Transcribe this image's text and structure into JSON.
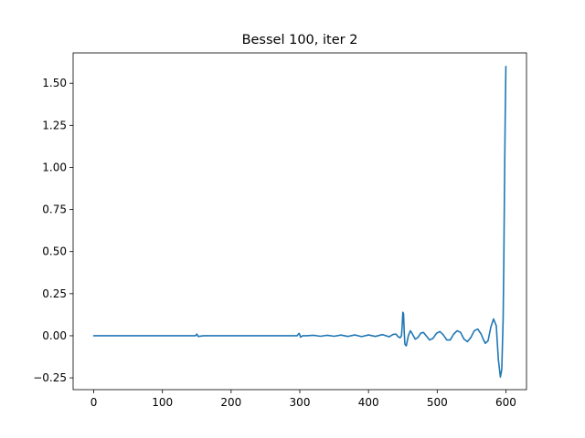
{
  "chart_data": {
    "type": "line",
    "title": "Bessel 100, iter 2",
    "xlabel": "",
    "ylabel": "",
    "xlim": [
      -30,
      630
    ],
    "ylim": [
      -0.32,
      1.68
    ],
    "x_ticks": [
      0,
      100,
      200,
      300,
      400,
      500,
      600
    ],
    "y_ticks": [
      -0.25,
      0.0,
      0.25,
      0.5,
      0.75,
      1.0,
      1.25,
      1.5
    ],
    "x_tick_labels": [
      "0",
      "100",
      "200",
      "300",
      "400",
      "500",
      "600"
    ],
    "y_tick_labels": [
      "−0.25",
      "0.00",
      "0.25",
      "0.50",
      "0.75",
      "1.00",
      "1.25",
      "1.50"
    ],
    "grid": false,
    "series": [
      {
        "color": "#1f77b4",
        "x": [
          0,
          148,
          149,
          150,
          151,
          152,
          160,
          296,
          298,
          299,
          300,
          301,
          302,
          304,
          310,
          320,
          330,
          340,
          350,
          360,
          370,
          380,
          390,
          400,
          410,
          420,
          430,
          436,
          440,
          443,
          446,
          448,
          449,
          450,
          451,
          452,
          453,
          455,
          458,
          461,
          464,
          468,
          472,
          476,
          480,
          484,
          489,
          494,
          499,
          504,
          509,
          514,
          519,
          524,
          529,
          534,
          539,
          544,
          549,
          554,
          559,
          564,
          567,
          570,
          574,
          578,
          582,
          586,
          589,
          592,
          594,
          596,
          597,
          598,
          599,
          600
        ],
        "y": [
          0.0,
          0.0,
          0.004,
          0.01,
          0.004,
          -0.004,
          0.0,
          0.0,
          0.01,
          0.014,
          0.006,
          -0.008,
          -0.006,
          0.0,
          0.0,
          0.003,
          -0.003,
          0.003,
          -0.003,
          0.004,
          -0.004,
          0.005,
          -0.005,
          0.005,
          -0.004,
          0.007,
          -0.006,
          0.008,
          0.01,
          -0.005,
          -0.012,
          0.0,
          0.06,
          0.14,
          0.13,
          0.02,
          -0.05,
          -0.06,
          0.0,
          0.03,
          0.01,
          -0.02,
          -0.01,
          0.015,
          0.02,
          0.0,
          -0.025,
          -0.015,
          0.015,
          0.025,
          0.005,
          -0.025,
          -0.025,
          0.01,
          0.03,
          0.02,
          -0.02,
          -0.035,
          -0.01,
          0.03,
          0.04,
          0.01,
          -0.02,
          -0.045,
          -0.03,
          0.05,
          0.1,
          0.06,
          -0.14,
          -0.245,
          -0.2,
          0.1,
          0.45,
          0.9,
          1.3,
          1.6
        ]
      }
    ]
  }
}
